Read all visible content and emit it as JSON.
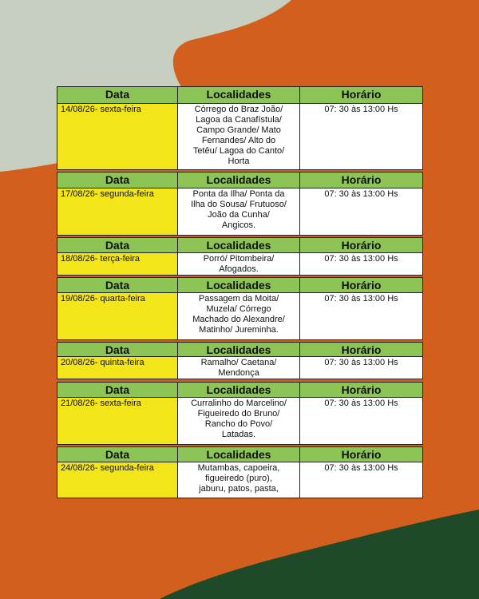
{
  "blocks": [
    {
      "header": [
        "Data",
        "Localidades",
        "Horário"
      ],
      "date": "14/08/26- sexta-feira",
      "locations": [
        "Córrego do Braz João/",
        "Lagoa da Canafístula/",
        "Campo Grande/ Mato",
        "Fernandes/ Alto do",
        "Tetêu/ Lagoa do Canto/",
        "Horta"
      ],
      "time": "07: 30 às 13:00 Hs"
    },
    {
      "header": [
        "Data",
        "Localidades",
        "Horário"
      ],
      "date": "17/08/26- segunda-feira",
      "locations": [
        "Ponta da Ilha/ Ponta da",
        "Ilha do Sousa/ Frutuoso/",
        "João da Cunha/",
        "Angicos."
      ],
      "time": "07: 30 às 13:00 Hs"
    },
    {
      "header": [
        "Data",
        "Localidades",
        "Horário"
      ],
      "date": "18/08/26- terça-feira",
      "locations": [
        "Porró/ Pitombeira/",
        "Afogados."
      ],
      "time": "07: 30 às 13:00 Hs"
    },
    {
      "header": [
        "Data",
        "Localidades",
        "Horário"
      ],
      "date": "19/08/26- quarta-feira",
      "locations": [
        "Passagem da Moita/",
        "Muzela/ Córrego",
        "Machado do Alexandre/",
        "Matinho/ Jureminha."
      ],
      "time": "07: 30 às 13:00 Hs"
    },
    {
      "header": [
        "Data",
        "Localidades",
        "Horário"
      ],
      "date": "20/08/26- quinta-feira",
      "locations": [
        "Ramalho/ Caetana/",
        "Mendonça"
      ],
      "time": "07: 30 às 13:00 Hs"
    },
    {
      "header": [
        "Data",
        "Localidades",
        "Horário"
      ],
      "date": "21/08/26- sexta-feira",
      "locations": [
        "Curralinho do Marcelino/",
        "Figueiredo do Bruno/",
        "Rancho do Povo/",
        "Latadas."
      ],
      "time": "07: 30 às 13:00 Hs"
    },
    {
      "header": [
        "Data",
        "Localidades",
        "Horário"
      ],
      "date": "24/08/26- segunda-feira",
      "locations": [
        "Mutambas, capoeira,",
        "figueiredo (puro),",
        "jaburu, patos, pasta,"
      ],
      "time": "07: 30 às 13:00 Hs"
    }
  ]
}
